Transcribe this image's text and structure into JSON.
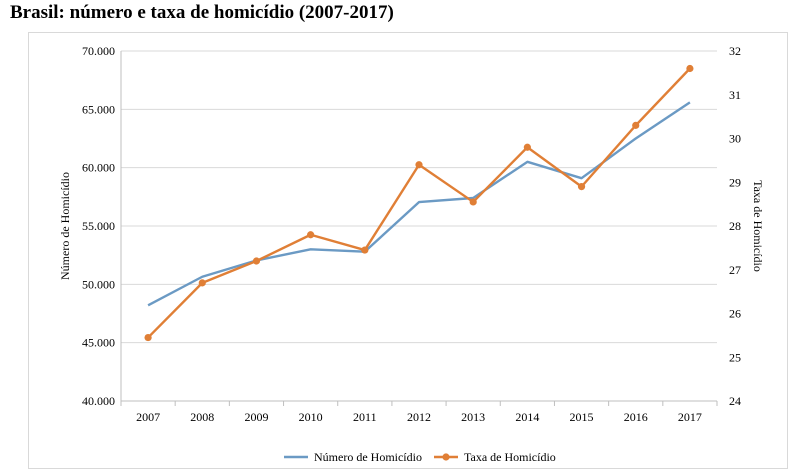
{
  "page": {
    "title": "Brasil: número e taxa de homicídio (2007-2017)"
  },
  "chart_data": {
    "type": "line",
    "title": "Brasil: número e taxa de homicídio (2007-2017)",
    "categories": [
      "2007",
      "2008",
      "2009",
      "2010",
      "2011",
      "2012",
      "2013",
      "2014",
      "2015",
      "2016",
      "2017"
    ],
    "y_left": {
      "label": "Número de Homicídio",
      "min": 40000,
      "max": 70000,
      "step": 5000,
      "tick_labels": [
        "40.000",
        "45.000",
        "50.000",
        "55.000",
        "60.000",
        "65.000",
        "70.000"
      ]
    },
    "y_right": {
      "label": "Taxa de Homicídio",
      "min": 24,
      "max": 32,
      "step": 1,
      "tick_labels": [
        "24",
        "25",
        "26",
        "27",
        "28",
        "29",
        "30",
        "31",
        "32"
      ]
    },
    "series": [
      {
        "name": "Número de Homicídio",
        "axis": "left",
        "color": "#6b9ac4",
        "markers": false,
        "values": [
          48200,
          50650,
          52050,
          53000,
          52800,
          57050,
          57400,
          60500,
          59100,
          62500,
          65600
        ]
      },
      {
        "name": "Taxa de Homicídio",
        "axis": "right",
        "color": "#e07f36",
        "markers": true,
        "values": [
          25.45,
          26.7,
          27.2,
          27.8,
          27.45,
          29.4,
          28.55,
          29.8,
          28.9,
          30.3,
          31.6
        ]
      }
    ],
    "grid": true,
    "legend_position": "bottom-center"
  }
}
